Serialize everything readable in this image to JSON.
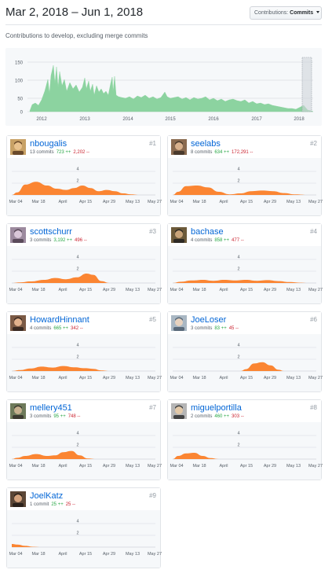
{
  "header": {
    "date_range": "Mar 2, 2018 – Jun 1, 2018",
    "select_label": "Contributions:",
    "select_value": "Commits",
    "subtitle": "Contributions to develop, excluding merge commits"
  },
  "overview": {
    "y_ticks": [
      "150",
      "100",
      "50",
      "0"
    ],
    "x_ticks": [
      "2012",
      "2013",
      "2014",
      "2015",
      "2016",
      "2017",
      "2018"
    ],
    "fill_color": "#8cd3a0",
    "selection_color": "#d1d5da"
  },
  "card_x_ticks": [
    "Mar 04",
    "Mar 18",
    "April",
    "Apr 15",
    "Apr 29",
    "May 13",
    "May 27"
  ],
  "colors": {
    "area": "#fb8532",
    "link": "#0366d6",
    "additions": "#28a745",
    "deletions": "#cb2431"
  },
  "contributors": [
    {
      "rank": "#1",
      "login": "nbougalis",
      "commits": "13 commits",
      "additions": "723 ++",
      "deletions": "2,202 --",
      "y_ticks": [
        "4",
        "2"
      ],
      "avatar": "avatar-1"
    },
    {
      "rank": "#2",
      "login": "seelabs",
      "commits": "8 commits",
      "additions": "634 ++",
      "deletions": "172,291 --",
      "y_ticks": [
        "4",
        "2"
      ],
      "avatar": "avatar-2"
    },
    {
      "rank": "#3",
      "login": "scottschurr",
      "commits": "3 commits",
      "additions": "3,192 ++",
      "deletions": "496 --",
      "y_ticks": [
        "4",
        "2"
      ],
      "avatar": "avatar-3"
    },
    {
      "rank": "#4",
      "login": "bachase",
      "commits": "4 commits",
      "additions": "858 ++",
      "deletions": "477 --",
      "y_ticks": [
        "4",
        "2"
      ],
      "avatar": "avatar-4"
    },
    {
      "rank": "#5",
      "login": "HowardHinnant",
      "commits": "4 commits",
      "additions": "665 ++",
      "deletions": "342 --",
      "y_ticks": [
        "4",
        "2"
      ],
      "avatar": "avatar-5"
    },
    {
      "rank": "#6",
      "login": "JoeLoser",
      "commits": "3 commits",
      "additions": "83 ++",
      "deletions": "45 --",
      "y_ticks": [
        "4",
        "2"
      ],
      "avatar": "avatar-6"
    },
    {
      "rank": "#7",
      "login": "mellery451",
      "commits": "3 commits",
      "additions": "95 ++",
      "deletions": "748 --",
      "y_ticks": [
        "4",
        "2"
      ],
      "avatar": "avatar-7"
    },
    {
      "rank": "#8",
      "login": "miguelportilla",
      "commits": "2 commits",
      "additions": "460 ++",
      "deletions": "303 --",
      "y_ticks": [
        "4",
        "2"
      ],
      "avatar": "avatar-8"
    },
    {
      "rank": "#9",
      "login": "JoelKatz",
      "commits": "1 commit",
      "additions": "25 ++",
      "deletions": "25 --",
      "y_ticks": [
        "4",
        "2"
      ],
      "avatar": "avatar-9"
    }
  ]
}
